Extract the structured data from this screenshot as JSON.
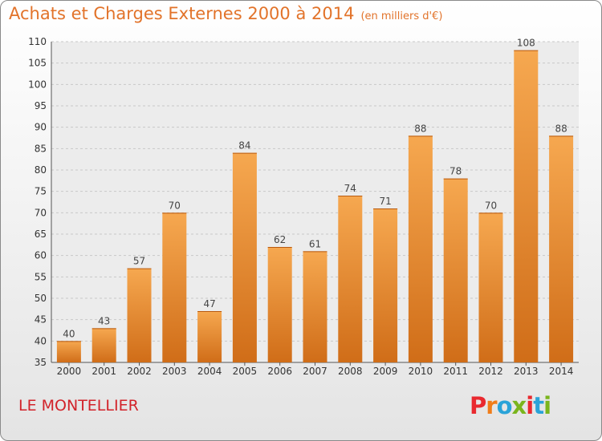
{
  "header": {
    "title": "Achats et Charges Externes 2000 à 2014",
    "subtitle": "(en milliers d'€)"
  },
  "footer": {
    "commune": "LE MONTELLIER",
    "brand": [
      "P",
      "r",
      "o",
      "x",
      "i",
      "t",
      "i"
    ]
  },
  "colors": {
    "title": "#e2732a",
    "commune": "#d2232a",
    "bar_top": "#f6a850",
    "bar_bottom": "#d06d18",
    "brand": [
      "#e9292f",
      "#f07d1a",
      "#2aa3d8",
      "#7ab51d",
      "#e9292f",
      "#2aa3d8",
      "#7ab51d"
    ]
  },
  "chart_data": {
    "type": "bar",
    "title": "Achats et Charges Externes 2000 à 2014",
    "subtitle": "(en milliers d'€)",
    "categories": [
      "2000",
      "2001",
      "2002",
      "2003",
      "2004",
      "2005",
      "2006",
      "2007",
      "2008",
      "2009",
      "2010",
      "2011",
      "2012",
      "2013",
      "2014"
    ],
    "values": [
      40,
      43,
      57,
      70,
      47,
      84,
      62,
      61,
      74,
      71,
      88,
      78,
      70,
      108,
      88
    ],
    "ylim": [
      35,
      110
    ],
    "yticks": [
      35,
      40,
      45,
      50,
      55,
      60,
      65,
      70,
      75,
      80,
      85,
      90,
      95,
      100,
      105,
      110
    ],
    "grid": true,
    "data_labels": true,
    "xlabel": "",
    "ylabel": ""
  }
}
